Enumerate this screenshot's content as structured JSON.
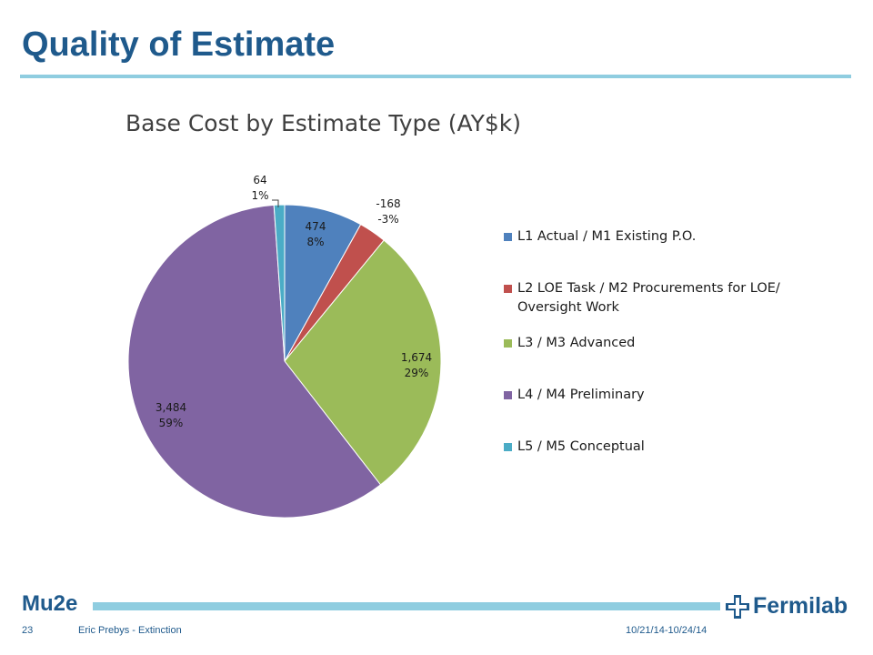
{
  "slide": {
    "title": "Quality of Estimate",
    "page_number": "23",
    "author": "Eric Prebys - Extinction",
    "date": "10/21/14-10/24/14",
    "brand": "Mu2e",
    "logo_text": "Fermilab",
    "logo_icon": "fermilab-logo-icon"
  },
  "colors": {
    "title": "#1f5a8c",
    "rule": "#8fcde0"
  },
  "chart_data": {
    "type": "pie",
    "title": "Base Cost by Estimate Type (AY$k)",
    "legend_position": "right",
    "slices": [
      {
        "label": "L1 Actual / M1 Existing P.O.",
        "value": 474,
        "value_label": "474",
        "percent_label": "8%",
        "color": "#4f81bd"
      },
      {
        "label": "L2 LOE Task / M2 Procurements for LOE/ Oversight Work",
        "value": -168,
        "value_label": "-168",
        "percent_label": "-3%",
        "color": "#c0504d"
      },
      {
        "label": "L3 / M3  Advanced",
        "value": 1674,
        "value_label": "1,674",
        "percent_label": "29%",
        "color": "#9bbb59"
      },
      {
        "label": "L4 / M4 Preliminary",
        "value": 3484,
        "value_label": "3,484",
        "percent_label": "59%",
        "color": "#8064a2"
      },
      {
        "label": "L5 / M5 Conceptual",
        "value": 64,
        "value_label": "64",
        "percent_label": "1%",
        "color": "#4bacc6"
      }
    ]
  }
}
